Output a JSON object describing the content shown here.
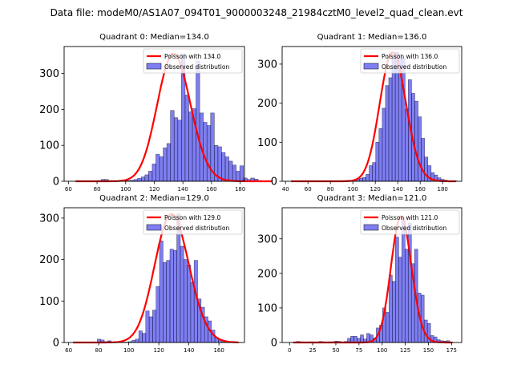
{
  "suptitle": "Data file: modeM0/AS1A07_094T01_9000003248_21984cztM0_level2_quad_clean.evt",
  "chart_data": [
    {
      "type": "bar",
      "title": "Quadrant 0: Median=134.0",
      "xlim": [
        57,
        183
      ],
      "ylim": [
        0,
        375
      ],
      "xticks": [
        60,
        80,
        100,
        120,
        140,
        160,
        180
      ],
      "yticks": [
        0,
        100,
        200,
        300
      ],
      "bin_start": 65,
      "bin_width": 2.55,
      "counts": [
        1,
        1,
        1,
        1,
        1,
        1,
        2,
        5,
        5,
        1,
        1,
        1,
        1,
        1,
        2,
        3,
        5,
        8,
        12,
        18,
        28,
        48,
        75,
        68,
        93,
        105,
        197,
        177,
        170,
        355,
        240,
        193,
        202,
        335,
        190,
        164,
        155,
        190,
        100,
        96,
        80,
        68,
        56,
        45,
        28,
        43,
        9,
        5,
        9,
        6,
        2,
        1,
        1,
        1
      ],
      "poisson_lambda": 134.0,
      "poisson_scale": 355,
      "legend": {
        "line_label": "Poisson with 134.0",
        "bar_label": "Observed distribution",
        "loc": "upper right"
      }
    },
    {
      "type": "bar",
      "title": "Quadrant 1: Median=136.0",
      "xlim": [
        37,
        197
      ],
      "ylim": [
        0,
        345
      ],
      "xticks": [
        40,
        60,
        80,
        100,
        120,
        140,
        160,
        180
      ],
      "yticks": [
        0,
        100,
        200,
        300
      ],
      "bin_start": 45,
      "bin_width": 2.9,
      "counts": [
        1,
        1,
        1,
        1,
        1,
        1,
        1,
        1,
        1,
        1,
        1,
        1,
        1,
        1,
        1,
        1,
        1,
        2,
        2,
        3,
        5,
        8,
        10,
        18,
        40,
        48,
        100,
        135,
        187,
        245,
        265,
        320,
        330,
        325,
        315,
        185,
        260,
        225,
        205,
        165,
        110,
        62,
        40,
        22,
        16,
        9,
        5,
        3,
        1,
        1,
        1
      ],
      "poisson_lambda": 136.0,
      "poisson_scale": 330,
      "legend": {
        "line_label": "Poisson with 136.0",
        "bar_label": "Observed distribution",
        "loc": "upper right"
      }
    },
    {
      "type": "bar",
      "title": "Quadrant 2: Median=129.0",
      "xlim": [
        57,
        177
      ],
      "ylim": [
        0,
        325
      ],
      "xticks": [
        60,
        80,
        100,
        120,
        140,
        160
      ],
      "yticks": [
        0,
        100,
        200,
        300
      ],
      "bin_start": 63,
      "bin_width": 2.3,
      "counts": [
        1,
        1,
        1,
        1,
        1,
        1,
        1,
        8,
        6,
        2,
        4,
        1,
        1,
        1,
        1,
        1,
        2,
        5,
        8,
        28,
        22,
        76,
        62,
        78,
        135,
        245,
        193,
        198,
        225,
        222,
        310,
        232,
        200,
        187,
        145,
        198,
        105,
        85,
        62,
        52,
        30,
        12,
        6,
        2,
        2,
        1,
        1,
        1
      ],
      "poisson_lambda": 129.0,
      "poisson_scale": 310,
      "legend": {
        "line_label": "Poisson with 129.0",
        "bar_label": "Observed distribution",
        "loc": "upper right"
      }
    },
    {
      "type": "bar",
      "title": "Quadrant 3: Median=121.0",
      "xlim": [
        -8,
        186
      ],
      "ylim": [
        0,
        390
      ],
      "xticks": [
        0,
        25,
        50,
        75,
        100,
        125,
        150,
        175
      ],
      "yticks": [
        0,
        100,
        200,
        300
      ],
      "bin_start": 4,
      "bin_width": 3.45,
      "counts": [
        1,
        3,
        2,
        1,
        1,
        2,
        1,
        1,
        3,
        2,
        1,
        2,
        2,
        4,
        3,
        1,
        3,
        12,
        18,
        18,
        12,
        22,
        10,
        26,
        22,
        13,
        42,
        50,
        100,
        87,
        195,
        177,
        305,
        247,
        362,
        270,
        345,
        228,
        270,
        143,
        137,
        65,
        55,
        20,
        16,
        8,
        5,
        4,
        5,
        1
      ],
      "poisson_lambda": 121.0,
      "poisson_scale": 365,
      "legend": {
        "line_label": "Poisson with 121.0",
        "bar_label": "Observed distribution",
        "loc": "upper right"
      }
    }
  ]
}
